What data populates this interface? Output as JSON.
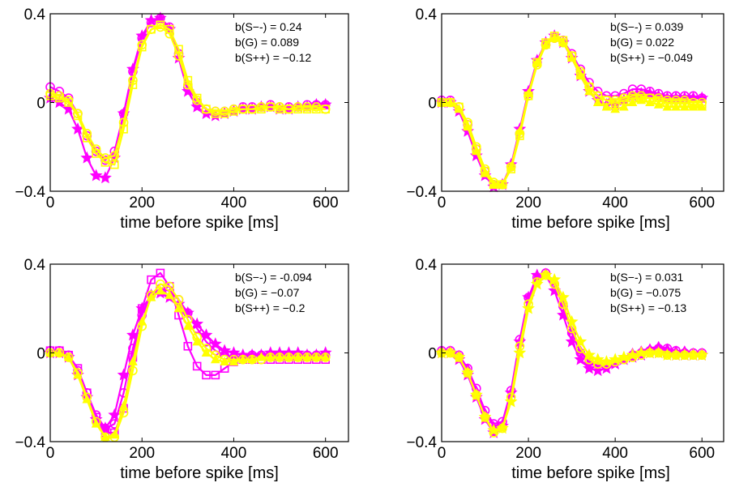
{
  "colors": {
    "magenta": "#ff00ff",
    "yellow": "#ffff00",
    "cyan": "#00e0e0",
    "axis": "#000000"
  },
  "chart_data": [
    {
      "type": "line",
      "xlabel": "time before spike [ms]",
      "xlim": [
        0,
        650
      ],
      "ylim": [
        -0.4,
        0.4
      ],
      "xticks": [
        "0",
        "200",
        "400",
        "600"
      ],
      "yticks": [
        "-0.4",
        "0",
        "0.4"
      ],
      "annotations": [
        "b(S--)   = 0.24",
        "b(G)      = 0.089",
        "b(S++) = -0.12"
      ],
      "x": [
        0,
        20,
        40,
        60,
        80,
        100,
        120,
        140,
        160,
        180,
        200,
        220,
        240,
        260,
        280,
        300,
        320,
        340,
        360,
        380,
        400,
        420,
        440,
        460,
        480,
        500,
        520,
        540,
        560,
        580,
        600
      ],
      "series": [
        {
          "color": "#ff00ff",
          "marker": "star",
          "values": [
            0.02,
            0.0,
            -0.03,
            -0.12,
            -0.25,
            -0.33,
            -0.34,
            -0.25,
            -0.05,
            0.15,
            0.3,
            0.37,
            0.38,
            0.33,
            0.2,
            0.05,
            -0.02,
            -0.05,
            -0.06,
            -0.05,
            -0.04,
            -0.03,
            -0.03,
            -0.02,
            -0.02,
            -0.03,
            -0.03,
            -0.02,
            -0.02,
            -0.01,
            -0.01
          ]
        },
        {
          "color": "#ff00ff",
          "marker": "circle",
          "values": [
            0.07,
            0.05,
            0.02,
            -0.05,
            -0.15,
            -0.22,
            -0.26,
            -0.22,
            -0.05,
            0.14,
            0.29,
            0.36,
            0.38,
            0.34,
            0.22,
            0.07,
            0.0,
            -0.03,
            -0.04,
            -0.04,
            -0.03,
            -0.02,
            -0.02,
            -0.02,
            -0.01,
            -0.02,
            -0.02,
            -0.02,
            -0.01,
            -0.01,
            -0.01
          ]
        },
        {
          "color": "#ffff00",
          "marker": "square",
          "values": [
            0.03,
            0.02,
            0.0,
            -0.06,
            -0.16,
            -0.23,
            -0.27,
            -0.28,
            -0.12,
            0.08,
            0.25,
            0.33,
            0.35,
            0.33,
            0.24,
            0.1,
            0.02,
            -0.03,
            -0.05,
            -0.05,
            -0.04,
            -0.03,
            -0.03,
            -0.03,
            -0.02,
            -0.03,
            -0.03,
            -0.03,
            -0.03,
            -0.03,
            -0.03
          ]
        },
        {
          "color": "#ffff00",
          "marker": "circle",
          "values": [
            0.04,
            0.03,
            0.01,
            -0.05,
            -0.14,
            -0.21,
            -0.25,
            -0.24,
            -0.09,
            0.1,
            0.26,
            0.33,
            0.34,
            0.31,
            0.21,
            0.08,
            0.01,
            -0.03,
            -0.04,
            -0.04,
            -0.03,
            -0.03,
            -0.03,
            -0.02,
            -0.02,
            -0.02,
            -0.03,
            -0.02,
            -0.02,
            -0.02,
            -0.03
          ]
        }
      ]
    },
    {
      "type": "line",
      "xlabel": "time before spike [ms]",
      "xlim": [
        0,
        650
      ],
      "ylim": [
        -0.4,
        0.4
      ],
      "xticks": [
        "0",
        "200",
        "400",
        "600"
      ],
      "yticks": [
        "-0.4",
        "0",
        "0.4"
      ],
      "annotations": [
        "b(S--)   = 0.039",
        "b(G)      = 0.022",
        "b(S++) = -0.049"
      ],
      "x": [
        0,
        20,
        40,
        60,
        80,
        100,
        120,
        140,
        160,
        180,
        200,
        220,
        240,
        260,
        280,
        300,
        320,
        340,
        360,
        380,
        400,
        420,
        440,
        460,
        480,
        500,
        520,
        540,
        560,
        580,
        600
      ],
      "series": [
        {
          "color": "#ff00ff",
          "marker": "star",
          "values": [
            0.0,
            0.0,
            -0.04,
            -0.13,
            -0.24,
            -0.33,
            -0.38,
            -0.37,
            -0.28,
            -0.12,
            0.05,
            0.19,
            0.27,
            0.3,
            0.27,
            0.2,
            0.12,
            0.05,
            0.01,
            -0.01,
            -0.01,
            0.01,
            0.03,
            0.04,
            0.04,
            0.03,
            0.02,
            0.02,
            0.02,
            0.02,
            0.02
          ]
        },
        {
          "color": "#ff00ff",
          "marker": "circle",
          "values": [
            0.01,
            0.01,
            -0.02,
            -0.1,
            -0.21,
            -0.31,
            -0.37,
            -0.37,
            -0.29,
            -0.14,
            0.04,
            0.18,
            0.26,
            0.29,
            0.28,
            0.22,
            0.15,
            0.09,
            0.05,
            0.03,
            0.03,
            0.04,
            0.06,
            0.06,
            0.05,
            0.04,
            0.03,
            0.03,
            0.03,
            0.03,
            0.02
          ]
        },
        {
          "color": "#ffff00",
          "marker": "triangle",
          "values": [
            0.0,
            0.0,
            -0.03,
            -0.11,
            -0.22,
            -0.32,
            -0.37,
            -0.37,
            -0.29,
            -0.13,
            0.04,
            0.18,
            0.26,
            0.29,
            0.27,
            0.2,
            0.12,
            0.05,
            0.0,
            -0.02,
            -0.03,
            -0.02,
            0.0,
            0.01,
            0.0,
            -0.01,
            -0.02,
            -0.02,
            -0.02,
            -0.02,
            -0.02
          ]
        },
        {
          "color": "#ffff00",
          "marker": "square",
          "values": [
            0.0,
            0.0,
            -0.02,
            -0.1,
            -0.21,
            -0.31,
            -0.37,
            -0.37,
            -0.3,
            -0.15,
            0.03,
            0.18,
            0.27,
            0.3,
            0.28,
            0.21,
            0.13,
            0.07,
            0.03,
            0.01,
            0.0,
            0.01,
            0.02,
            0.02,
            0.02,
            0.01,
            0.0,
            0.0,
            0.0,
            -0.01,
            -0.01
          ]
        },
        {
          "color": "#ffff00",
          "marker": "circle",
          "values": [
            0.0,
            0.0,
            -0.02,
            -0.09,
            -0.2,
            -0.3,
            -0.36,
            -0.37,
            -0.29,
            -0.14,
            0.03,
            0.17,
            0.26,
            0.29,
            0.27,
            0.21,
            0.14,
            0.07,
            0.03,
            0.01,
            0.01,
            0.02,
            0.03,
            0.03,
            0.02,
            0.02,
            0.01,
            0.01,
            0.01,
            0.0,
            0.0
          ]
        }
      ]
    },
    {
      "type": "line",
      "xlabel": "time before spike [ms]",
      "xlim": [
        0,
        650
      ],
      "ylim": [
        -0.4,
        0.4
      ],
      "xticks": [
        "0",
        "200",
        "400",
        "600"
      ],
      "yticks": [
        "-0.4",
        "0",
        "0.4"
      ],
      "annotations": [
        "b(S--)   = -0.094",
        "b(G)      = -0.07",
        "b(S++) = -0.2"
      ],
      "x": [
        0,
        20,
        40,
        60,
        80,
        100,
        120,
        140,
        160,
        180,
        200,
        220,
        240,
        260,
        280,
        300,
        320,
        340,
        360,
        380,
        400,
        420,
        440,
        460,
        480,
        500,
        520,
        540,
        560,
        580,
        600
      ],
      "series": [
        {
          "color": "#ff00ff",
          "marker": "star",
          "values": [
            0.0,
            0.0,
            -0.02,
            -0.1,
            -0.2,
            -0.3,
            -0.34,
            -0.28,
            -0.1,
            0.08,
            0.2,
            0.26,
            0.27,
            0.25,
            0.22,
            0.18,
            0.13,
            0.08,
            0.04,
            0.01,
            0.0,
            -0.01,
            -0.01,
            -0.01,
            0.0,
            0.0,
            0.0,
            0.0,
            -0.01,
            -0.01,
            0.0
          ]
        },
        {
          "color": "#ff00ff",
          "marker": "circle",
          "values": [
            0.01,
            0.01,
            -0.01,
            -0.08,
            -0.18,
            -0.28,
            -0.34,
            -0.32,
            -0.18,
            0.02,
            0.17,
            0.26,
            0.29,
            0.28,
            0.24,
            0.18,
            0.11,
            0.05,
            0.01,
            -0.01,
            -0.02,
            -0.02,
            -0.01,
            -0.01,
            -0.01,
            -0.01,
            -0.01,
            -0.01,
            -0.01,
            -0.01,
            -0.01
          ]
        },
        {
          "color": "#ff00ff",
          "marker": "square",
          "values": [
            0.01,
            0.01,
            -0.01,
            -0.07,
            -0.18,
            -0.29,
            -0.36,
            -0.36,
            -0.25,
            -0.02,
            0.2,
            0.33,
            0.36,
            0.3,
            0.17,
            0.03,
            -0.06,
            -0.1,
            -0.1,
            -0.07,
            -0.04,
            -0.03,
            -0.03,
            -0.03,
            -0.03,
            -0.03,
            -0.03,
            -0.03,
            -0.03,
            -0.03,
            -0.03
          ]
        },
        {
          "color": "#ffff00",
          "marker": "circle",
          "values": [
            0.0,
            0.0,
            -0.02,
            -0.09,
            -0.2,
            -0.31,
            -0.38,
            -0.38,
            -0.27,
            -0.08,
            0.12,
            0.26,
            0.31,
            0.3,
            0.24,
            0.15,
            0.07,
            0.02,
            -0.01,
            -0.03,
            -0.03,
            -0.03,
            -0.03,
            -0.03,
            -0.02,
            -0.02,
            -0.02,
            -0.02,
            -0.02,
            -0.02,
            -0.02
          ]
        },
        {
          "color": "#ffff00",
          "marker": "triangle",
          "values": [
            0.0,
            0.0,
            -0.02,
            -0.1,
            -0.21,
            -0.32,
            -0.38,
            -0.37,
            -0.24,
            -0.04,
            0.14,
            0.25,
            0.28,
            0.26,
            0.2,
            0.12,
            0.05,
            0.0,
            -0.03,
            -0.04,
            -0.04,
            -0.03,
            -0.03,
            -0.02,
            -0.02,
            -0.02,
            -0.02,
            -0.02,
            -0.02,
            -0.02,
            -0.02
          ]
        }
      ]
    },
    {
      "type": "line",
      "xlabel": "time before spike [ms]",
      "xlim": [
        0,
        650
      ],
      "ylim": [
        -0.4,
        0.4
      ],
      "xticks": [
        "0",
        "200",
        "400",
        "600"
      ],
      "yticks": [
        "-0.4",
        "0",
        "0.4"
      ],
      "annotations": [
        "b(S--)   = 0.031",
        "b(G)      = -0.075",
        "b(S++) = -0.13"
      ],
      "x": [
        0,
        20,
        40,
        60,
        80,
        100,
        120,
        140,
        160,
        180,
        200,
        220,
        240,
        260,
        280,
        300,
        320,
        340,
        360,
        380,
        400,
        420,
        440,
        460,
        480,
        500,
        520,
        540,
        560,
        580,
        600
      ],
      "series": [
        {
          "color": "#ff00ff",
          "marker": "star",
          "values": [
            0.0,
            0.0,
            -0.03,
            -0.1,
            -0.2,
            -0.3,
            -0.36,
            -0.33,
            -0.18,
            0.05,
            0.25,
            0.35,
            0.35,
            0.28,
            0.17,
            0.05,
            -0.03,
            -0.07,
            -0.08,
            -0.07,
            -0.05,
            -0.03,
            -0.02,
            -0.01,
            0.0,
            0.0,
            0.0,
            -0.01,
            -0.01,
            -0.01,
            -0.01
          ]
        },
        {
          "color": "#ff00ff",
          "marker": "circle",
          "values": [
            0.01,
            0.01,
            -0.01,
            -0.07,
            -0.16,
            -0.26,
            -0.32,
            -0.31,
            -0.17,
            0.06,
            0.25,
            0.34,
            0.36,
            0.31,
            0.21,
            0.09,
            0.0,
            -0.04,
            -0.05,
            -0.05,
            -0.04,
            -0.03,
            -0.01,
            0.0,
            0.01,
            0.02,
            0.02,
            0.01,
            0.0,
            0.0,
            0.0
          ]
        },
        {
          "color": "#ff00ff",
          "marker": "triangle",
          "values": [
            0.01,
            0.01,
            -0.01,
            -0.07,
            -0.17,
            -0.27,
            -0.33,
            -0.32,
            -0.18,
            0.05,
            0.24,
            0.34,
            0.36,
            0.32,
            0.22,
            0.1,
            0.01,
            -0.04,
            -0.05,
            -0.05,
            -0.04,
            -0.02,
            0.0,
            0.01,
            0.02,
            0.03,
            0.02,
            0.01,
            0.01,
            0.0,
            0.0
          ]
        },
        {
          "color": "#ffff00",
          "marker": "circle",
          "values": [
            0.0,
            0.0,
            -0.02,
            -0.09,
            -0.19,
            -0.29,
            -0.36,
            -0.34,
            -0.2,
            0.03,
            0.22,
            0.32,
            0.35,
            0.31,
            0.22,
            0.11,
            0.02,
            -0.03,
            -0.05,
            -0.05,
            -0.04,
            -0.03,
            -0.02,
            -0.01,
            0.0,
            0.0,
            -0.01,
            -0.01,
            -0.01,
            -0.01,
            -0.01
          ]
        },
        {
          "color": "#ffff00",
          "marker": "star",
          "values": [
            0.0,
            0.0,
            -0.02,
            -0.09,
            -0.19,
            -0.29,
            -0.35,
            -0.34,
            -0.22,
            0.0,
            0.2,
            0.31,
            0.35,
            0.33,
            0.25,
            0.14,
            0.05,
            -0.01,
            -0.03,
            -0.04,
            -0.03,
            -0.02,
            -0.01,
            0.0,
            0.0,
            0.0,
            -0.01,
            -0.01,
            -0.01,
            -0.01,
            -0.01
          ]
        }
      ]
    }
  ]
}
